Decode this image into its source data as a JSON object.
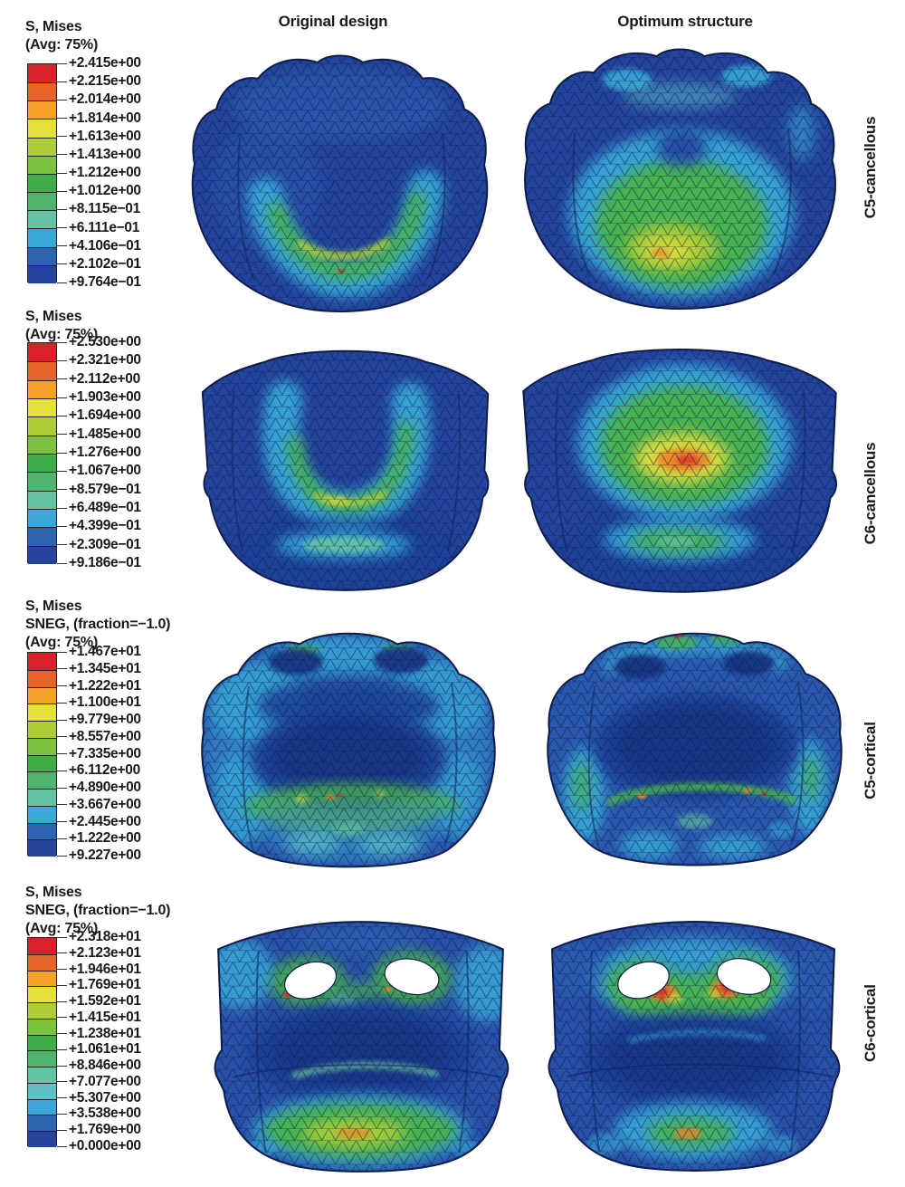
{
  "figure": {
    "columns": {
      "original": "Original design",
      "optimum": "Optimum structure"
    },
    "rows": [
      {
        "id": "c5-cancellous",
        "label": "C5-cancellous",
        "legend": {
          "lines": [
            "S, Mises",
            "(Avg: 75%)"
          ],
          "values": [
            "+2.415e+00",
            "+2.215e+00",
            "+2.014e+00",
            "+1.814e+00",
            "+1.613e+00",
            "+1.413e+00",
            "+1.212e+00",
            "+1.012e+00",
            "+8.115e−01",
            "+6.111e−01",
            "+4.106e−01",
            "+2.102e−01",
            "+9.764e−01"
          ]
        }
      },
      {
        "id": "c6-cancellous",
        "label": "C6-cancellous",
        "legend": {
          "lines": [
            "S, Mises",
            "(Avg: 75%)"
          ],
          "values": [
            "+2.530e+00",
            "+2.321e+00",
            "+2.112e+00",
            "+1.903e+00",
            "+1.694e+00",
            "+1.485e+00",
            "+1.276e+00",
            "+1.067e+00",
            "+8.579e−01",
            "+6.489e−01",
            "+4.399e−01",
            "+2.309e−01",
            "+9.186e−01"
          ]
        }
      },
      {
        "id": "c5-cortical",
        "label": "C5-cortical",
        "legend": {
          "lines": [
            "S, Mises",
            "SNEG, (fraction=−1.0)",
            "(Avg: 75%)"
          ],
          "values": [
            "+1.467e+01",
            "+1.345e+01",
            "+1.222e+01",
            "+1.100e+01",
            "+9.779e+00",
            "+8.557e+00",
            "+7.335e+00",
            "+6.112e+00",
            "+4.890e+00",
            "+3.667e+00",
            "+2.445e+00",
            "+1.222e+00",
            "+9.227e+00"
          ]
        }
      },
      {
        "id": "c6-cortical",
        "label": "C6-cortical",
        "legend": {
          "lines": [
            "S, Mises",
            "SNEG, (fraction=−1.0)",
            "(Avg: 75%)"
          ],
          "values": [
            "+2.318e+01",
            "+2.123e+01",
            "+1.946e+01",
            "+1.769e+01",
            "+1.592e+01",
            "+1.415e+01",
            "+1.238e+01",
            "+1.061e+01",
            "+8.846e+00",
            "+7.077e+00",
            "+5.307e+00",
            "+3.538e+00",
            "+1.769e+00",
            "+0.000e+00"
          ]
        }
      }
    ]
  },
  "colors": {
    "red": "#d93025",
    "orange": "#ee8427",
    "amber": "#f2a02d",
    "yellow": "#e3df3c",
    "yellow_green": "#b0d038",
    "green": "#49b44a",
    "soft_green": "#52b56a",
    "seafoam": "#66c4a3",
    "teal": "#5cc3c9",
    "cyan": "#38a8d8",
    "sky": "#2d63b5",
    "body_blue": "#24459e",
    "body_blue_light": "#2a58ae",
    "body_blue_mid": "#2850a8",
    "navy": "#1c3f96",
    "deep_navy": "#16337e",
    "mesh_line": "#0a1744",
    "outline": "#0e1c4a",
    "hole_white": "#ffffff",
    "text": "#1a1a1a",
    "background": "#ffffff",
    "legend_spectrum": [
      "#da2128",
      "#e76428",
      "#f4a229",
      "#e5e03b",
      "#aecd37",
      "#7cc23f",
      "#3fae49",
      "#4db56d",
      "#66c4a3",
      "#5fc2c8",
      "#3aa9da",
      "#2e64b2",
      "#27449c"
    ]
  },
  "chart_data": [
    {
      "type": "heatmap",
      "panel": "C5-cancellous",
      "field": "S, Mises",
      "averaging": "(Avg: 75%)",
      "columns": [
        "Original design",
        "Optimum structure"
      ],
      "colorbar_tick_labels": [
        "+2.415e+00",
        "+2.215e+00",
        "+2.014e+00",
        "+1.814e+00",
        "+1.613e+00",
        "+1.413e+00",
        "+1.212e+00",
        "+1.012e+00",
        "+8.115e−01",
        "+6.111e−01",
        "+4.106e−01",
        "+2.102e−01",
        "+9.764e−01"
      ],
      "colorbar_max": 2.415,
      "bands": 12
    },
    {
      "type": "heatmap",
      "panel": "C6-cancellous",
      "field": "S, Mises",
      "averaging": "(Avg: 75%)",
      "columns": [
        "Original design",
        "Optimum structure"
      ],
      "colorbar_tick_labels": [
        "+2.530e+00",
        "+2.321e+00",
        "+2.112e+00",
        "+1.903e+00",
        "+1.694e+00",
        "+1.485e+00",
        "+1.276e+00",
        "+1.067e+00",
        "+8.579e−01",
        "+6.489e−01",
        "+4.399e−01",
        "+2.309e−01",
        "+9.186e−01"
      ],
      "colorbar_max": 2.53,
      "bands": 12
    },
    {
      "type": "heatmap",
      "panel": "C5-cortical",
      "field": "S, Mises",
      "surface": "SNEG, (fraction=−1.0)",
      "averaging": "(Avg: 75%)",
      "columns": [
        "Original design",
        "Optimum structure"
      ],
      "colorbar_tick_labels": [
        "+1.467e+01",
        "+1.345e+01",
        "+1.222e+01",
        "+1.100e+01",
        "+9.779e+00",
        "+8.557e+00",
        "+7.335e+00",
        "+6.112e+00",
        "+4.890e+00",
        "+3.667e+00",
        "+2.445e+00",
        "+1.222e+00",
        "+9.227e+00"
      ],
      "colorbar_max": 14.67,
      "bands": 12
    },
    {
      "type": "heatmap",
      "panel": "C6-cortical",
      "field": "S, Mises",
      "surface": "SNEG, (fraction=−1.0)",
      "averaging": "(Avg: 75%)",
      "columns": [
        "Original design",
        "Optimum structure"
      ],
      "colorbar_tick_labels": [
        "+2.318e+01",
        "+2.123e+01",
        "+1.946e+01",
        "+1.769e+01",
        "+1.592e+01",
        "+1.415e+01",
        "+1.238e+01",
        "+1.061e+01",
        "+8.846e+00",
        "+7.077e+00",
        "+5.307e+00",
        "+3.538e+00",
        "+1.769e+00",
        "+0.000e+00"
      ],
      "colorbar_max": 23.18,
      "bands": 13
    }
  ]
}
